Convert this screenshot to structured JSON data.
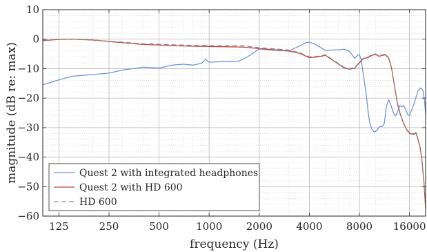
{
  "chart_data": {
    "type": "line",
    "title": "",
    "xlabel": "frequency (Hz)",
    "ylabel": "magnitude (dB re: max)",
    "x_scale": "log",
    "xlim": [
      100,
      20000
    ],
    "ylim": [
      -60,
      10
    ],
    "x_ticks": [
      125,
      250,
      500,
      1000,
      2000,
      4000,
      8000,
      16000
    ],
    "x_tick_labels": [
      "125",
      "250",
      "500",
      "1000",
      "2000",
      "4000",
      "8000",
      "16000"
    ],
    "y_ticks": [
      10,
      0,
      -10,
      -20,
      -30,
      -40,
      -50,
      -60
    ],
    "y_tick_labels": [
      "10",
      "0",
      "−10",
      "−20",
      "−30",
      "−40",
      "−50",
      "−60"
    ],
    "grid": true,
    "minor_grid": true,
    "legend_position": "bottom-left",
    "series": [
      {
        "name": "Quest 2 with integrated headphones",
        "color": "#6f95e0",
        "style": "solid",
        "points": [
          [
            100,
            -15.5
          ],
          [
            125,
            -13.8
          ],
          [
            150,
            -12.6
          ],
          [
            200,
            -12.0
          ],
          [
            250,
            -11.5
          ],
          [
            300,
            -10.5
          ],
          [
            400,
            -9.5
          ],
          [
            500,
            -9.8
          ],
          [
            600,
            -8.8
          ],
          [
            700,
            -8.5
          ],
          [
            800,
            -8.8
          ],
          [
            900,
            -8.2
          ],
          [
            950,
            -6.8
          ],
          [
            1000,
            -7.8
          ],
          [
            1200,
            -7.6
          ],
          [
            1500,
            -7.5
          ],
          [
            1700,
            -6.0
          ],
          [
            2000,
            -3.3
          ],
          [
            2500,
            -3.8
          ],
          [
            3000,
            -4.0
          ],
          [
            3500,
            -2.3
          ],
          [
            3800,
            -1.2
          ],
          [
            4000,
            -1.0
          ],
          [
            4300,
            -1.6
          ],
          [
            5000,
            -3.8
          ],
          [
            6000,
            -3.6
          ],
          [
            6500,
            -3.4
          ],
          [
            7000,
            -4.2
          ],
          [
            7500,
            -6.5
          ],
          [
            7800,
            -5.5
          ],
          [
            8000,
            -5.2
          ],
          [
            8200,
            -7.0
          ],
          [
            8500,
            -13.0
          ],
          [
            8800,
            -19.0
          ],
          [
            9000,
            -24.0
          ],
          [
            9200,
            -28.0
          ],
          [
            9500,
            -30.5
          ],
          [
            9800,
            -31.5
          ],
          [
            10200,
            -31.0
          ],
          [
            10500,
            -29.8
          ],
          [
            11000,
            -29.5
          ],
          [
            11300,
            -28.5
          ],
          [
            11600,
            -23.0
          ],
          [
            12000,
            -20.5
          ],
          [
            12400,
            -22.5
          ],
          [
            12800,
            -25.0
          ],
          [
            13200,
            -26.0
          ],
          [
            13500,
            -25.0
          ],
          [
            14000,
            -22.5
          ],
          [
            14400,
            -23.0
          ],
          [
            14800,
            -22.5
          ],
          [
            15200,
            -24.0
          ],
          [
            15600,
            -25.5
          ],
          [
            16000,
            -26.0
          ],
          [
            17000,
            -22.0
          ],
          [
            18000,
            -17.5
          ],
          [
            18800,
            -16.5
          ],
          [
            19300,
            -17.5
          ],
          [
            19700,
            -21.0
          ],
          [
            20000,
            -25.5
          ]
        ]
      },
      {
        "name": "Quest 2 with HD 600",
        "color": "#c0443c",
        "style": "solid",
        "points": [
          [
            100,
            -0.5
          ],
          [
            125,
            -0.1
          ],
          [
            150,
            0.0
          ],
          [
            200,
            -0.3
          ],
          [
            250,
            -0.8
          ],
          [
            300,
            -1.2
          ],
          [
            400,
            -1.8
          ],
          [
            500,
            -2.0
          ],
          [
            600,
            -2.2
          ],
          [
            800,
            -2.4
          ],
          [
            1000,
            -2.5
          ],
          [
            1300,
            -2.6
          ],
          [
            1600,
            -2.7
          ],
          [
            2000,
            -3.2
          ],
          [
            2500,
            -3.6
          ],
          [
            3000,
            -4.0
          ],
          [
            3500,
            -4.8
          ],
          [
            4000,
            -6.3
          ],
          [
            4500,
            -6.0
          ],
          [
            5000,
            -5.5
          ],
          [
            6000,
            -8.5
          ],
          [
            6500,
            -9.8
          ],
          [
            7000,
            -10.2
          ],
          [
            7500,
            -9.8
          ],
          [
            8000,
            -8.0
          ],
          [
            8500,
            -6.5
          ],
          [
            9000,
            -6.3
          ],
          [
            9500,
            -5.5
          ],
          [
            10000,
            -5.2
          ],
          [
            10500,
            -5.8
          ],
          [
            11000,
            -5.5
          ],
          [
            11500,
            -5.3
          ],
          [
            12000,
            -6.5
          ],
          [
            12500,
            -10.0
          ],
          [
            13000,
            -16.0
          ],
          [
            13500,
            -21.5
          ],
          [
            14000,
            -25.0
          ],
          [
            14500,
            -27.5
          ],
          [
            15000,
            -29.5
          ],
          [
            15500,
            -31.0
          ],
          [
            16000,
            -32.0
          ],
          [
            17000,
            -32.3
          ],
          [
            17500,
            -31.8
          ],
          [
            18000,
            -34.0
          ],
          [
            18500,
            -36.5
          ],
          [
            19000,
            -41.0
          ],
          [
            19500,
            -48.0
          ],
          [
            20000,
            -57.5
          ]
        ]
      },
      {
        "name": "HD 600",
        "color": "#8a8a8a",
        "style": "dashed",
        "points": [
          [
            100,
            -0.3
          ],
          [
            125,
            0.0
          ],
          [
            150,
            0.0
          ],
          [
            200,
            -0.2
          ],
          [
            250,
            -0.7
          ],
          [
            300,
            -1.0
          ],
          [
            400,
            -1.6
          ],
          [
            500,
            -1.7
          ],
          [
            600,
            -1.9
          ],
          [
            800,
            -2.1
          ],
          [
            1000,
            -2.2
          ],
          [
            1300,
            -2.2
          ],
          [
            1600,
            -2.3
          ],
          [
            2000,
            -2.9
          ],
          [
            2500,
            -3.3
          ],
          [
            3000,
            -3.7
          ],
          [
            3500,
            -4.6
          ],
          [
            4000,
            -6.0
          ],
          [
            4500,
            -5.8
          ],
          [
            5000,
            -5.3
          ],
          [
            6000,
            -8.3
          ],
          [
            6500,
            -9.6
          ],
          [
            7000,
            -10.0
          ],
          [
            7500,
            -9.6
          ],
          [
            8000,
            -7.8
          ],
          [
            8500,
            -6.3
          ],
          [
            9000,
            -6.1
          ],
          [
            9500,
            -5.3
          ],
          [
            10000,
            -5.0
          ],
          [
            10500,
            -5.6
          ],
          [
            11000,
            -5.3
          ],
          [
            11500,
            -5.1
          ],
          [
            12000,
            -6.3
          ],
          [
            12500,
            -9.8
          ],
          [
            13000,
            -15.8
          ],
          [
            13500,
            -21.3
          ],
          [
            14000,
            -24.8
          ],
          [
            14500,
            -27.3
          ],
          [
            15000,
            -29.3
          ],
          [
            15500,
            -30.8
          ],
          [
            16000,
            -31.8
          ],
          [
            17000,
            -32.1
          ],
          [
            17500,
            -31.6
          ],
          [
            18000,
            -33.8
          ],
          [
            18500,
            -36.3
          ],
          [
            19000,
            -40.8
          ],
          [
            19500,
            -47.8
          ],
          [
            20000,
            -57.3
          ]
        ]
      }
    ]
  }
}
